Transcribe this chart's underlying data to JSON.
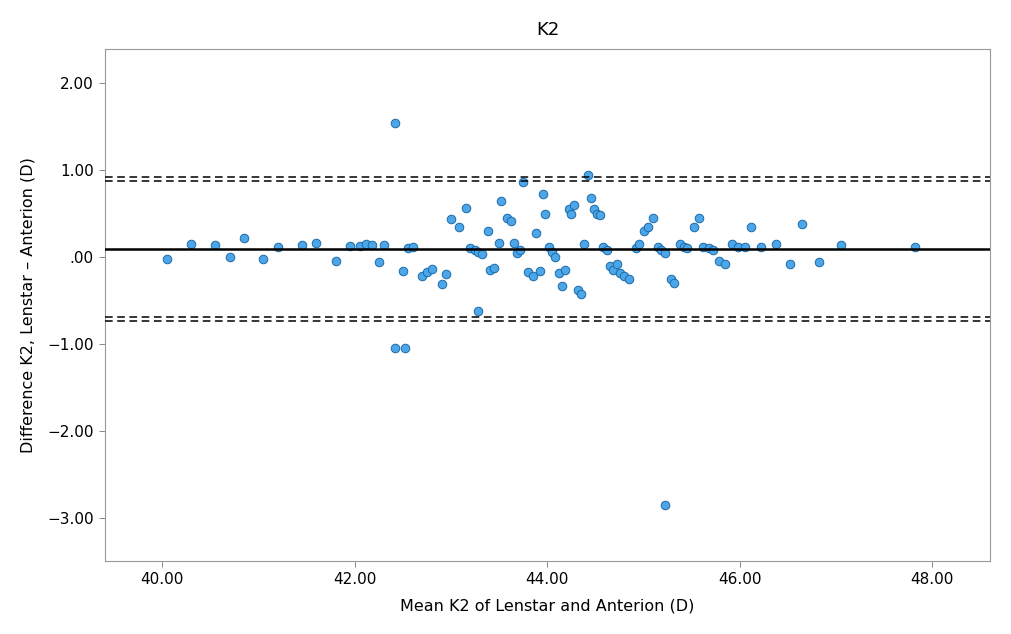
{
  "title": "K2",
  "xlabel": "Mean K2 of Lenstar and Anterion (D)",
  "ylabel": "Difference K2, Lenstar – Anterion (D)",
  "xlim": [
    39.4,
    48.6
  ],
  "ylim": [
    -3.5,
    2.4
  ],
  "xticks": [
    40.0,
    42.0,
    44.0,
    46.0,
    48.0
  ],
  "yticks": [
    -3.0,
    -2.0,
    -1.0,
    0.0,
    1.0,
    2.0
  ],
  "ytick_labels": [
    "−3.00",
    "−2.00",
    "−1.00",
    ".00",
    "1.00",
    "2.00"
  ],
  "mean_diff": 0.09,
  "upper_loa_1": 0.92,
  "upper_loa_2": 0.875,
  "lower_loa_1": -0.74,
  "lower_loa_2": -0.695,
  "point_color": "#4da6e8",
  "point_edge_color": "#1a6aaa",
  "line_color": "black",
  "figsize": [
    10.11,
    6.34
  ],
  "dpi": 100,
  "scatter_x": [
    40.05,
    40.3,
    40.55,
    40.7,
    40.85,
    41.05,
    41.2,
    41.45,
    41.6,
    41.8,
    41.95,
    42.05,
    42.12,
    42.18,
    42.25,
    42.3,
    42.42,
    42.5,
    42.55,
    42.6,
    42.7,
    42.75,
    42.8,
    42.9,
    42.95,
    43.0,
    43.08,
    43.15,
    43.2,
    43.25,
    43.28,
    43.32,
    43.38,
    43.4,
    43.45,
    43.5,
    43.52,
    43.58,
    43.62,
    43.65,
    43.68,
    43.72,
    43.75,
    43.8,
    43.85,
    43.88,
    43.92,
    43.95,
    43.98,
    44.02,
    44.05,
    44.08,
    44.12,
    44.15,
    44.18,
    44.22,
    44.25,
    44.28,
    44.32,
    44.35,
    44.38,
    44.42,
    44.45,
    44.48,
    44.52,
    44.55,
    44.58,
    44.62,
    44.65,
    44.68,
    44.72,
    44.75,
    44.8,
    44.85,
    44.92,
    44.95,
    45.0,
    45.05,
    45.1,
    45.15,
    45.18,
    45.22,
    45.28,
    45.32,
    45.38,
    45.42,
    45.45,
    45.52,
    45.58,
    45.62,
    45.68,
    45.72,
    45.78,
    45.85,
    45.92,
    45.98,
    46.05,
    46.12,
    46.22,
    46.38,
    46.52,
    46.65,
    46.82,
    47.05,
    47.82,
    42.42,
    42.52,
    43.28,
    45.22
  ],
  "scatter_y": [
    -0.02,
    0.15,
    0.14,
    0.0,
    0.22,
    -0.02,
    0.12,
    0.14,
    0.16,
    -0.04,
    0.13,
    0.13,
    0.15,
    0.14,
    -0.06,
    0.14,
    1.55,
    -0.16,
    0.1,
    0.12,
    -0.22,
    -0.17,
    -0.14,
    -0.31,
    -0.19,
    0.44,
    0.35,
    0.56,
    0.1,
    0.08,
    0.06,
    0.04,
    0.3,
    -0.15,
    -0.12,
    0.16,
    0.65,
    0.45,
    0.42,
    0.16,
    0.05,
    0.08,
    0.87,
    -0.17,
    -0.22,
    0.28,
    -0.16,
    0.73,
    0.5,
    0.12,
    0.06,
    0.0,
    -0.18,
    -0.33,
    -0.15,
    0.55,
    0.5,
    0.6,
    -0.38,
    -0.43,
    0.15,
    0.95,
    0.68,
    0.55,
    0.5,
    0.48,
    0.12,
    0.08,
    -0.1,
    -0.15,
    -0.08,
    -0.18,
    -0.22,
    -0.25,
    0.1,
    0.15,
    0.3,
    0.35,
    0.45,
    0.12,
    0.08,
    0.05,
    -0.25,
    -0.3,
    0.15,
    0.12,
    0.1,
    0.35,
    0.45,
    0.12,
    0.1,
    0.08,
    -0.05,
    -0.08,
    0.15,
    0.12,
    0.12,
    0.35,
    0.12,
    0.15,
    -0.08,
    0.38,
    -0.06,
    0.14,
    0.12,
    -1.05,
    -1.05,
    -0.62,
    -2.85
  ]
}
